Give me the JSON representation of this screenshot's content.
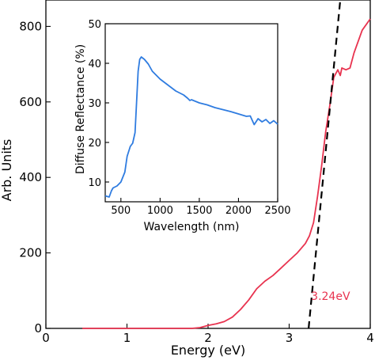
{
  "chart_data": [
    {
      "type": "line",
      "xlabel": "Energy (eV)",
      "ylabel": "Arb. Units",
      "xlim": [
        0,
        4
      ],
      "ylim": [
        0,
        870
      ],
      "xticks": [
        "0",
        "1",
        "2",
        "3",
        "4"
      ],
      "yticks": [
        "0",
        "200",
        "400",
        "600",
        "800"
      ],
      "grid": false,
      "series": [
        {
          "color": "#e8334f",
          "points": [
            [
              0.45,
              0
            ],
            [
              1.0,
              0
            ],
            [
              1.5,
              0
            ],
            [
              1.8,
              0
            ],
            [
              1.9,
              2
            ],
            [
              2.0,
              8
            ],
            [
              2.1,
              12
            ],
            [
              2.2,
              18
            ],
            [
              2.3,
              30
            ],
            [
              2.4,
              50
            ],
            [
              2.5,
              75
            ],
            [
              2.6,
              105
            ],
            [
              2.7,
              125
            ],
            [
              2.8,
              140
            ],
            [
              2.9,
              160
            ],
            [
              3.0,
              180
            ],
            [
              3.1,
              200
            ],
            [
              3.2,
              225
            ],
            [
              3.25,
              245
            ],
            [
              3.3,
              280
            ],
            [
              3.35,
              350
            ],
            [
              3.4,
              430
            ],
            [
              3.45,
              520
            ],
            [
              3.5,
              590
            ],
            [
              3.55,
              665
            ],
            [
              3.6,
              685
            ],
            [
              3.63,
              670
            ],
            [
              3.65,
              690
            ],
            [
              3.7,
              685
            ],
            [
              3.75,
              690
            ],
            [
              3.8,
              730
            ],
            [
              3.9,
              790
            ],
            [
              4.0,
              820
            ]
          ]
        },
        {
          "style": "dashed",
          "color": "#000000",
          "points": [
            [
              3.24,
              0
            ],
            [
              3.63,
              870
            ]
          ]
        }
      ],
      "annotations": [
        {
          "text": "3.24eV",
          "color": "#e8334f",
          "x": 3.27,
          "y": 75
        }
      ]
    },
    {
      "type": "line",
      "xlabel": "Wavelength (nm)",
      "ylabel": "Diffuse Reflectance (%)",
      "xlim": [
        300,
        2500
      ],
      "ylim": [
        5,
        50
      ],
      "xticks": [
        "500",
        "1000",
        "1500",
        "2000",
        "2500"
      ],
      "yticks": [
        "10",
        "20",
        "30",
        "40",
        "50"
      ],
      "grid": false,
      "series": [
        {
          "color": "#2f7ce0",
          "points": [
            [
              300,
              6.5
            ],
            [
              350,
              6.2
            ],
            [
              380,
              7.8
            ],
            [
              400,
              8.5
            ],
            [
              450,
              9.0
            ],
            [
              500,
              10.0
            ],
            [
              550,
              12.5
            ],
            [
              580,
              16.5
            ],
            [
              620,
              19.0
            ],
            [
              650,
              19.8
            ],
            [
              680,
              22.5
            ],
            [
              700,
              30.0
            ],
            [
              720,
              38.0
            ],
            [
              740,
              41.0
            ],
            [
              760,
              41.6
            ],
            [
              800,
              41.0
            ],
            [
              850,
              39.8
            ],
            [
              900,
              38.0
            ],
            [
              1000,
              36.0
            ],
            [
              1100,
              34.5
            ],
            [
              1200,
              33.0
            ],
            [
              1300,
              32.0
            ],
            [
              1350,
              31.2
            ],
            [
              1380,
              30.6
            ],
            [
              1400,
              30.8
            ],
            [
              1500,
              30.0
            ],
            [
              1600,
              29.5
            ],
            [
              1700,
              28.8
            ],
            [
              1800,
              28.3
            ],
            [
              1900,
              27.8
            ],
            [
              2000,
              27.2
            ],
            [
              2100,
              26.6
            ],
            [
              2150,
              26.7
            ],
            [
              2200,
              24.5
            ],
            [
              2250,
              26.0
            ],
            [
              2300,
              25.2
            ],
            [
              2350,
              25.8
            ],
            [
              2400,
              24.8
            ],
            [
              2450,
              25.5
            ],
            [
              2500,
              24.6
            ]
          ]
        }
      ]
    }
  ]
}
